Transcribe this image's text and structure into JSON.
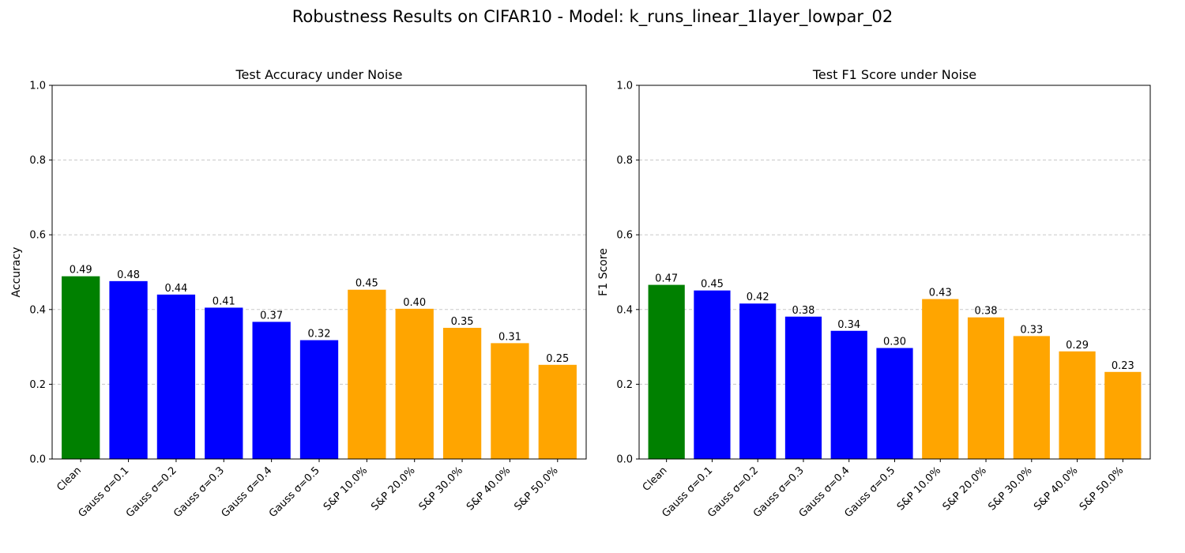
{
  "suptitle": "Robustness Results on CIFAR10 - Model: k_runs_linear_1layer_lowpar_02",
  "colors": {
    "clean": "#008000",
    "gauss": "#0000ff",
    "sp": "#ffa500",
    "grid": "#c8c8c8"
  },
  "chart_data": [
    {
      "type": "bar",
      "title": "Test Accuracy under Noise",
      "xlabel": "",
      "ylabel": "Accuracy",
      "ylim": [
        0,
        1.0
      ],
      "yticks": [
        "0.0",
        "0.2",
        "0.4",
        "0.6",
        "0.8",
        "1.0"
      ],
      "grid": "y-dashed",
      "categories": [
        "Clean",
        "Gauss σ=0.1",
        "Gauss σ=0.2",
        "Gauss σ=0.3",
        "Gauss σ=0.4",
        "Gauss σ=0.5",
        "S&P 10.0%",
        "S&P 20.0%",
        "S&P 30.0%",
        "S&P 40.0%",
        "S&P 50.0%"
      ],
      "values": [
        0.489,
        0.476,
        0.44,
        0.405,
        0.367,
        0.318,
        0.453,
        0.402,
        0.351,
        0.31,
        0.252
      ],
      "labels": [
        "0.49",
        "0.48",
        "0.44",
        "0.41",
        "0.37",
        "0.32",
        "0.45",
        "0.40",
        "0.35",
        "0.31",
        "0.25"
      ],
      "bar_colors": [
        "clean",
        "gauss",
        "gauss",
        "gauss",
        "gauss",
        "gauss",
        "sp",
        "sp",
        "sp",
        "sp",
        "sp"
      ]
    },
    {
      "type": "bar",
      "title": "Test F1 Score under Noise",
      "xlabel": "",
      "ylabel": "F1 Score",
      "ylim": [
        0,
        1.0
      ],
      "yticks": [
        "0.0",
        "0.2",
        "0.4",
        "0.6",
        "0.8",
        "1.0"
      ],
      "grid": "y-dashed",
      "categories": [
        "Clean",
        "Gauss σ=0.1",
        "Gauss σ=0.2",
        "Gauss σ=0.3",
        "Gauss σ=0.4",
        "Gauss σ=0.5",
        "S&P 10.0%",
        "S&P 20.0%",
        "S&P 30.0%",
        "S&P 40.0%",
        "S&P 50.0%"
      ],
      "values": [
        0.466,
        0.451,
        0.416,
        0.381,
        0.343,
        0.297,
        0.428,
        0.379,
        0.329,
        0.288,
        0.233
      ],
      "labels": [
        "0.47",
        "0.45",
        "0.42",
        "0.38",
        "0.34",
        "0.30",
        "0.43",
        "0.38",
        "0.33",
        "0.29",
        "0.23"
      ],
      "bar_colors": [
        "clean",
        "gauss",
        "gauss",
        "gauss",
        "gauss",
        "gauss",
        "sp",
        "sp",
        "sp",
        "sp",
        "sp"
      ]
    }
  ]
}
